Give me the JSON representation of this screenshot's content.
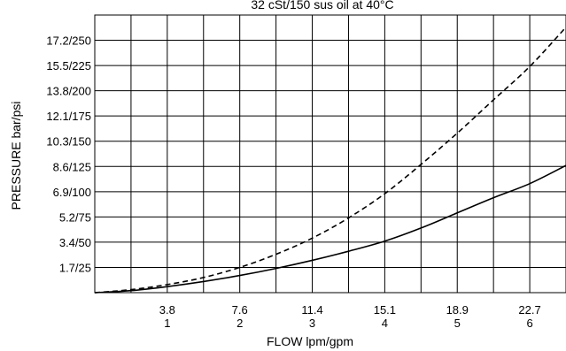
{
  "chart_data": {
    "type": "line",
    "title": "32 cSt/150 sus oil at 40°C",
    "xlabel": "FLOW lpm/gpm",
    "ylabel": "PRESSURE bar/psi",
    "x_unit_primary": "lpm",
    "x_unit_secondary": "gpm",
    "y_unit_primary": "bar",
    "y_unit_secondary": "psi",
    "xlim_gpm": [
      0,
      6.5
    ],
    "ylim_psi": [
      0,
      275
    ],
    "x_ticks": [
      {
        "gpm": 1,
        "lpm_label": "3.8",
        "gpm_label": "1"
      },
      {
        "gpm": 2,
        "lpm_label": "7.6",
        "gpm_label": "2"
      },
      {
        "gpm": 3,
        "lpm_label": "11.4",
        "gpm_label": "3"
      },
      {
        "gpm": 4,
        "lpm_label": "15.1",
        "gpm_label": "4"
      },
      {
        "gpm": 5,
        "lpm_label": "18.9",
        "gpm_label": "5"
      },
      {
        "gpm": 6,
        "lpm_label": "22.7",
        "gpm_label": "6"
      }
    ],
    "y_ticks": [
      {
        "psi": 25,
        "label": "1.7/25"
      },
      {
        "psi": 50,
        "label": "3.4/50"
      },
      {
        "psi": 75,
        "label": "5.2/75"
      },
      {
        "psi": 100,
        "label": "6.9/100"
      },
      {
        "psi": 125,
        "label": "8.6/125"
      },
      {
        "psi": 150,
        "label": "10.3/150"
      },
      {
        "psi": 175,
        "label": "12.1/175"
      },
      {
        "psi": 200,
        "label": "13.8/200"
      },
      {
        "psi": 225,
        "label": "15.5/225"
      },
      {
        "psi": 250,
        "label": "17.2/250"
      }
    ],
    "grid": true,
    "series": [
      {
        "style": "solid",
        "x": [
          0,
          0.5,
          1,
          1.5,
          2,
          2.5,
          3,
          3.5,
          4,
          4.5,
          5,
          5.5,
          6,
          6.5
        ],
        "y": [
          0,
          2,
          6,
          11,
          17,
          24,
          32,
          41,
          51,
          64,
          79,
          94,
          108,
          126
        ]
      },
      {
        "style": "dashed",
        "x": [
          0,
          0.5,
          1,
          1.5,
          2,
          2.5,
          3,
          3.5,
          4,
          4.5,
          5,
          5.5,
          6,
          6.5
        ],
        "y": [
          0,
          3,
          8,
          15,
          25,
          38,
          54,
          74,
          98,
          127,
          158,
          191,
          224,
          263
        ]
      }
    ]
  }
}
